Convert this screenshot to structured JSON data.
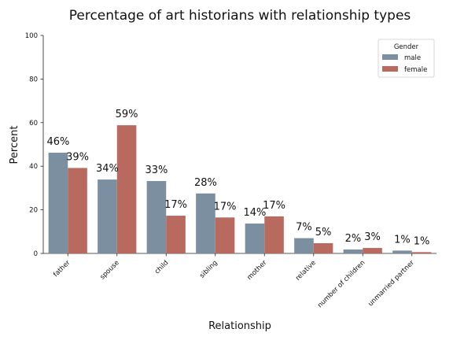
{
  "chart_data": {
    "type": "bar",
    "title": "Percentage of art historians with relationship types",
    "xlabel": "Relationship",
    "ylabel": "Percent",
    "ylim": [
      0,
      100
    ],
    "yticks": [
      0,
      20,
      40,
      60,
      80,
      100
    ],
    "grid": false,
    "legend": {
      "title": "Gender",
      "placement": "top-right"
    },
    "categories": [
      "father",
      "spouse",
      "child",
      "sibling",
      "mother",
      "relative",
      "number of children",
      "unmarried partner"
    ],
    "series": [
      {
        "name": "male",
        "color": "#7b8fa0",
        "values": [
          46.2,
          33.9,
          33.2,
          27.5,
          13.7,
          7.0,
          1.8,
          1.3
        ],
        "labels": [
          "46%",
          "34%",
          "33%",
          "28%",
          "14%",
          "7%",
          "2%",
          "1%"
        ]
      },
      {
        "name": "female",
        "color": "#b96a5f",
        "values": [
          39.2,
          58.8,
          17.3,
          16.5,
          17.0,
          4.7,
          2.5,
          0.6
        ],
        "labels": [
          "39%",
          "59%",
          "17%",
          "17%",
          "17%",
          "5%",
          "3%",
          "1%"
        ]
      }
    ]
  }
}
